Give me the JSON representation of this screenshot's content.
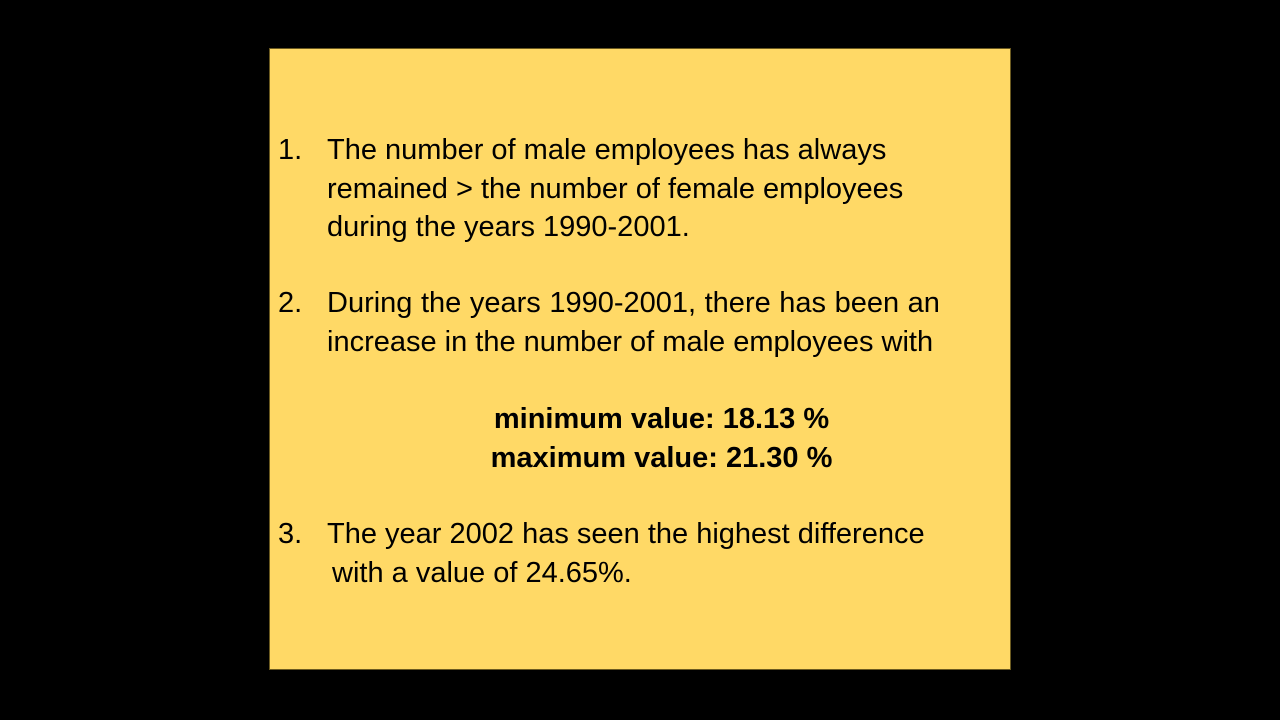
{
  "slide": {
    "background": "#000000",
    "box_color": "#FFD966",
    "items": [
      {
        "number": "1.",
        "lines": [
          "The number of male employees has always",
          "remained > the number of female employees",
          "during the years 1990-2001."
        ]
      },
      {
        "number": "2.",
        "lines": [
          "During the years 1990-2001, there has been an",
          "increase in the number of male employees with"
        ]
      },
      {
        "number": "3.",
        "lines": [
          "The year 2002 has seen the highest difference",
          "with a value of 24.65%."
        ]
      }
    ],
    "stats": {
      "minimum": "minimum value: 18.13 %",
      "maximum": "maximum value: 21.30 %"
    }
  }
}
